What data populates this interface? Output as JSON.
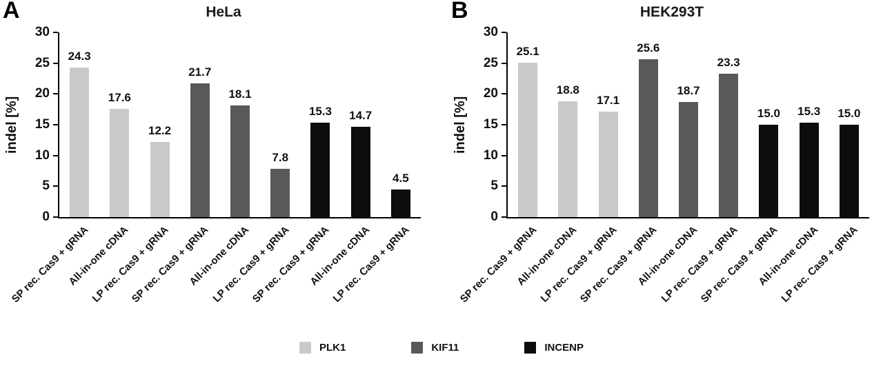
{
  "legend": {
    "items": [
      {
        "label": "PLK1",
        "color": "#c9c9c9"
      },
      {
        "label": "KIF11",
        "color": "#595959"
      },
      {
        "label": "INCENP",
        "color": "#0d0d0d"
      }
    ]
  },
  "chart_data": [
    {
      "type": "bar",
      "panel_letter": "A",
      "title": "HeLa",
      "xlabel": "",
      "ylabel": "indel [%]",
      "ylim": [
        0,
        30
      ],
      "yticks": [
        0,
        5,
        10,
        15,
        20,
        25,
        30
      ],
      "categories": [
        "SP rec. Cas9 + gRNA",
        "All-in-one cDNA",
        "LP rec. Cas9 + gRNA",
        "SP rec. Cas9 + gRNA",
        "All-in-one cDNA",
        "LP rec. Cas9 + gRNA",
        "SP rec. Cas9 + gRNA",
        "All-in-one cDNA",
        "LP rec. Cas9 + gRNA"
      ],
      "groups": [
        "PLK1",
        "PLK1",
        "PLK1",
        "KIF11",
        "KIF11",
        "KIF11",
        "INCENP",
        "INCENP",
        "INCENP"
      ],
      "values": [
        24.3,
        17.6,
        12.2,
        21.7,
        18.1,
        7.8,
        15.3,
        14.7,
        4.5
      ],
      "value_labels": [
        "24.3",
        "17.6",
        "12.2",
        "21.7",
        "18.1",
        "7.8",
        "15.3",
        "14.7",
        "4.5"
      ],
      "grid": false,
      "legend_position": "bottom"
    },
    {
      "type": "bar",
      "panel_letter": "B",
      "title": "HEK293T",
      "xlabel": "",
      "ylabel": "indel [%]",
      "ylim": [
        0,
        30
      ],
      "yticks": [
        0,
        5,
        10,
        15,
        20,
        25,
        30
      ],
      "categories": [
        "SP rec. Cas9 + gRNA",
        "All-in-one cDNA",
        "LP rec. Cas9 + gRNA",
        "SP rec. Cas9 + gRNA",
        "All-in-one cDNA",
        "LP rec. Cas9 + gRNA",
        "SP rec. Cas9 + gRNA",
        "All-in-one cDNA",
        "LP rec. Cas9 + gRNA"
      ],
      "groups": [
        "PLK1",
        "PLK1",
        "PLK1",
        "KIF11",
        "KIF11",
        "KIF11",
        "INCENP",
        "INCENP",
        "INCENP"
      ],
      "values": [
        25.1,
        18.8,
        17.1,
        25.6,
        18.7,
        23.3,
        15.0,
        15.3,
        15.0
      ],
      "value_labels": [
        "25.1",
        "18.8",
        "17.1",
        "25.6",
        "18.7",
        "23.3",
        "15.0",
        "15.3",
        "15.0"
      ],
      "grid": false,
      "legend_position": "bottom"
    }
  ]
}
